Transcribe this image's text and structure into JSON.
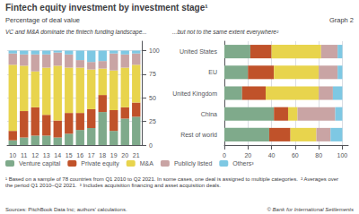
{
  "title": "Fintech equity investment by investment stage¹",
  "subtitle": "Percentage of deal value",
  "annotations": [
    "Graph 2",
    "¹ Based on a sample of 78 countries from Q1 2010 to Q2 2021. In some cases, one deal is assigned to multiple categories.  ² Averages over\nthe period Q1 2010–Q2 2021.  ³ Includes acquisition financing and asset acquisition deals.",
    "Sources: PitchBook Data Inc; authors' calculations.",
    "© Bank for International Settlements"
  ],
  "chart_data": [
    {
      "type": "bar",
      "title": "VC and M&A dominate the fintech funding landscape...",
      "stacked": true,
      "grid": true,
      "legend": "bottom",
      "categories": [
        "10",
        "11",
        "12",
        "13",
        "14",
        "15",
        "16",
        "17",
        "18",
        "19",
        "20",
        "21"
      ],
      "series": [
        {
          "name": "Venture capital",
          "color": "#7faa8b",
          "values": [
            5,
            8,
            10,
            10,
            8,
            12,
            16,
            18,
            35,
            15,
            28,
            30
          ]
        },
        {
          "name": "Private equity",
          "color": "#c0522a",
          "values": [
            10,
            28,
            30,
            22,
            18,
            22,
            18,
            20,
            18,
            22,
            12,
            15
          ]
        },
        {
          "name": "M&A",
          "color": "#e8d44d",
          "values": [
            70,
            48,
            38,
            50,
            58,
            48,
            48,
            42,
            28,
            42,
            42,
            40
          ]
        },
        {
          "name": "Publicly listed",
          "color": "#c9a4a4",
          "values": [
            12,
            12,
            18,
            14,
            14,
            14,
            8,
            8,
            8,
            18,
            14,
            12
          ]
        },
        {
          "name": "Others³",
          "color": "#7ec8e3",
          "values": [
            3,
            4,
            4,
            4,
            2,
            4,
            10,
            12,
            11,
            3,
            4,
            3
          ]
        }
      ],
      "ylim": [
        0,
        110
      ],
      "yticks": [
        0,
        25,
        50,
        75,
        100
      ]
    },
    {
      "type": "bar",
      "title": "...but not to the same extent everywhere²",
      "orientation": "horizontal",
      "stacked": true,
      "grid": true,
      "legend": "bottom",
      "categories": [
        "United States",
        "EU",
        "United Kingdom",
        "China",
        "Rest of world"
      ],
      "series": [
        {
          "name": "Venture capital",
          "color": "#7faa8b",
          "values": [
            22,
            20,
            15,
            42,
            38
          ]
        },
        {
          "name": "Private equity",
          "color": "#c0522a",
          "values": [
            18,
            22,
            20,
            12,
            18
          ]
        },
        {
          "name": "M&A",
          "color": "#e8d44d",
          "values": [
            42,
            38,
            45,
            8,
            22
          ]
        },
        {
          "name": "Publicly listed",
          "color": "#c9a4a4",
          "values": [
            14,
            16,
            12,
            32,
            12
          ]
        },
        {
          "name": "Others³",
          "color": "#7ec8e3",
          "values": [
            4,
            4,
            8,
            6,
            10
          ]
        }
      ],
      "xlim": [
        0,
        105
      ],
      "xticks": [
        0,
        20,
        40,
        60,
        80,
        100
      ]
    }
  ]
}
